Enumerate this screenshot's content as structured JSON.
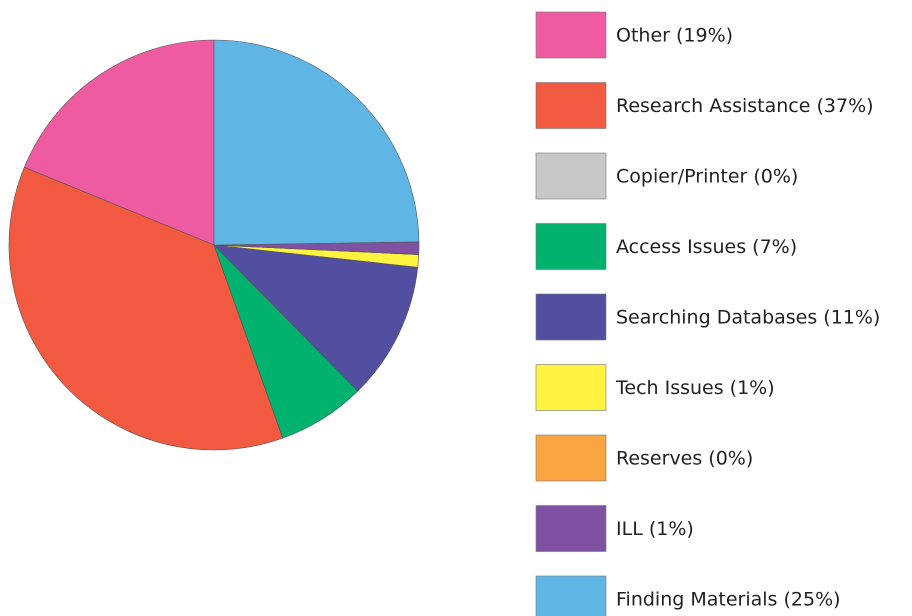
{
  "chart_data": {
    "type": "pie",
    "categories": [
      "Other (19%)",
      "Research Assistance (37%)",
      "Copier/Printer (0%)",
      "Access Issues (7%)",
      "Searching Databases (11%)",
      "Tech Issues (1%)",
      "Reserves (0%)",
      "ILL (1%)",
      "Finding Materials (25%)"
    ],
    "values": [
      19,
      37,
      0,
      7,
      11,
      1,
      0,
      1,
      25
    ],
    "colors": [
      "#ef5ba1",
      "#f15a40",
      "#c7c8ca",
      "#00b26d",
      "#524ea0",
      "#fff33f",
      "#f9a541",
      "#7e51a1",
      "#5fb6e5"
    ],
    "legend": "right"
  }
}
